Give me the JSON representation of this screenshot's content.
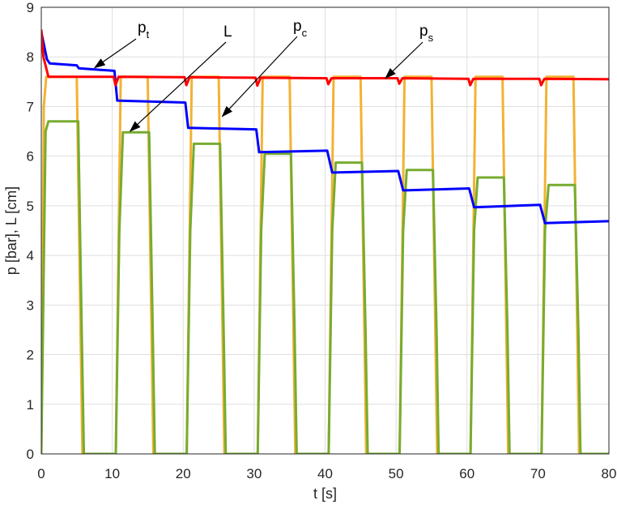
{
  "chart_data": {
    "type": "line",
    "title": "",
    "xlabel": "t [s]",
    "ylabel": "p [bar], L [cm]",
    "xlim": [
      0,
      80
    ],
    "ylim": [
      0,
      9
    ],
    "xticks": [
      0,
      10,
      20,
      30,
      40,
      50,
      60,
      70,
      80
    ],
    "yticks": [
      0,
      1,
      2,
      3,
      4,
      5,
      6,
      7,
      8,
      9
    ],
    "grid": true,
    "legend": "none",
    "colors": {
      "pt": "#0000ff",
      "ps": "#ff0000",
      "pc": "#f2b233",
      "L": "#77ac30"
    },
    "series": [
      {
        "key": "pt",
        "x": [
          0,
          0.3,
          0.8,
          1.2,
          5.0,
          5.3,
          10.3,
          10.7,
          20.3,
          20.7,
          30.3,
          30.7,
          40.3,
          41.0,
          50.3,
          51.0,
          60.3,
          61.0,
          70.3,
          71.0,
          80
        ],
        "y": [
          8.5,
          8.3,
          7.95,
          7.87,
          7.83,
          7.77,
          7.72,
          7.12,
          7.08,
          6.57,
          6.54,
          6.08,
          6.11,
          5.67,
          5.7,
          5.31,
          5.35,
          4.97,
          5.02,
          4.65,
          4.69
        ]
      },
      {
        "key": "ps",
        "x": [
          0,
          0.3,
          1.0,
          10.2,
          10.45,
          10.9,
          20.2,
          20.45,
          20.9,
          30.2,
          30.45,
          30.9,
          40.2,
          40.45,
          40.9,
          50.2,
          50.45,
          50.9,
          60.2,
          60.45,
          60.9,
          70.2,
          70.45,
          70.9,
          80
        ],
        "y": [
          8.55,
          8.0,
          7.6,
          7.6,
          7.43,
          7.6,
          7.59,
          7.43,
          7.59,
          7.58,
          7.42,
          7.58,
          7.57,
          7.45,
          7.57,
          7.57,
          7.46,
          7.57,
          7.56,
          7.43,
          7.56,
          7.56,
          7.43,
          7.56,
          7.55
        ]
      },
      {
        "key": "pc",
        "x": [
          0,
          0.35,
          0.7,
          5.0,
          5.4,
          5.8,
          10.5,
          10.85,
          11.2,
          15.0,
          15.4,
          15.8,
          20.5,
          20.85,
          21.2,
          25.0,
          25.4,
          25.8,
          30.5,
          30.85,
          31.2,
          35.0,
          35.4,
          35.8,
          40.5,
          40.85,
          41.2,
          45.0,
          45.4,
          45.8,
          50.5,
          50.85,
          51.2,
          55.0,
          55.4,
          55.8,
          60.5,
          60.85,
          61.2,
          65.0,
          65.4,
          65.8,
          70.5,
          70.85,
          71.2,
          75.0,
          75.4,
          75.8,
          80
        ],
        "y": [
          0,
          7.0,
          7.6,
          7.6,
          3.8,
          0,
          0,
          3.8,
          7.6,
          7.6,
          3.8,
          0,
          0,
          3.8,
          7.6,
          7.6,
          3.8,
          0,
          0,
          3.8,
          7.6,
          7.6,
          3.8,
          0,
          0,
          3.8,
          7.6,
          7.6,
          3.8,
          0,
          0,
          3.8,
          7.6,
          7.6,
          3.8,
          0,
          0,
          3.8,
          7.6,
          7.6,
          3.8,
          0,
          0,
          3.8,
          7.6,
          7.6,
          3.8,
          0,
          0
        ]
      },
      {
        "key": "L",
        "x": [
          0,
          0.6,
          1.0,
          5.2,
          5.7,
          6.0,
          10.5,
          11.0,
          11.5,
          15.2,
          15.7,
          16.0,
          20.5,
          21.0,
          21.5,
          25.2,
          25.7,
          26.0,
          30.5,
          31.0,
          31.5,
          35.2,
          35.7,
          36.0,
          40.5,
          41.0,
          41.5,
          45.2,
          45.7,
          46.0,
          50.5,
          51.0,
          51.5,
          55.2,
          55.7,
          56.0,
          60.5,
          61.0,
          61.5,
          65.2,
          65.7,
          66.0,
          70.5,
          71.0,
          71.5,
          75.2,
          75.7,
          76.0,
          80
        ],
        "y": [
          0,
          6.5,
          6.7,
          6.7,
          2.5,
          0,
          0,
          4.5,
          6.48,
          6.48,
          2.5,
          0,
          0,
          4.5,
          6.25,
          6.25,
          2.5,
          0,
          0,
          4.5,
          6.05,
          6.05,
          2.5,
          0,
          0,
          4.5,
          5.87,
          5.87,
          2.5,
          0,
          0,
          4.5,
          5.72,
          5.72,
          2.5,
          0,
          0,
          4.5,
          5.57,
          5.57,
          2.5,
          0,
          0,
          4.5,
          5.42,
          5.42,
          2.5,
          0,
          0
        ]
      }
    ],
    "annotations": [
      {
        "base": "p",
        "sub": "t",
        "arrow_to": [
          7.5,
          7.78
        ]
      },
      {
        "base": "L",
        "sub": "",
        "arrow_to": [
          12.5,
          6.5
        ]
      },
      {
        "base": "p",
        "sub": "c",
        "arrow_to": [
          25.5,
          6.8
        ]
      },
      {
        "base": "p",
        "sub": "s",
        "arrow_to": [
          48.5,
          7.57
        ]
      }
    ]
  }
}
